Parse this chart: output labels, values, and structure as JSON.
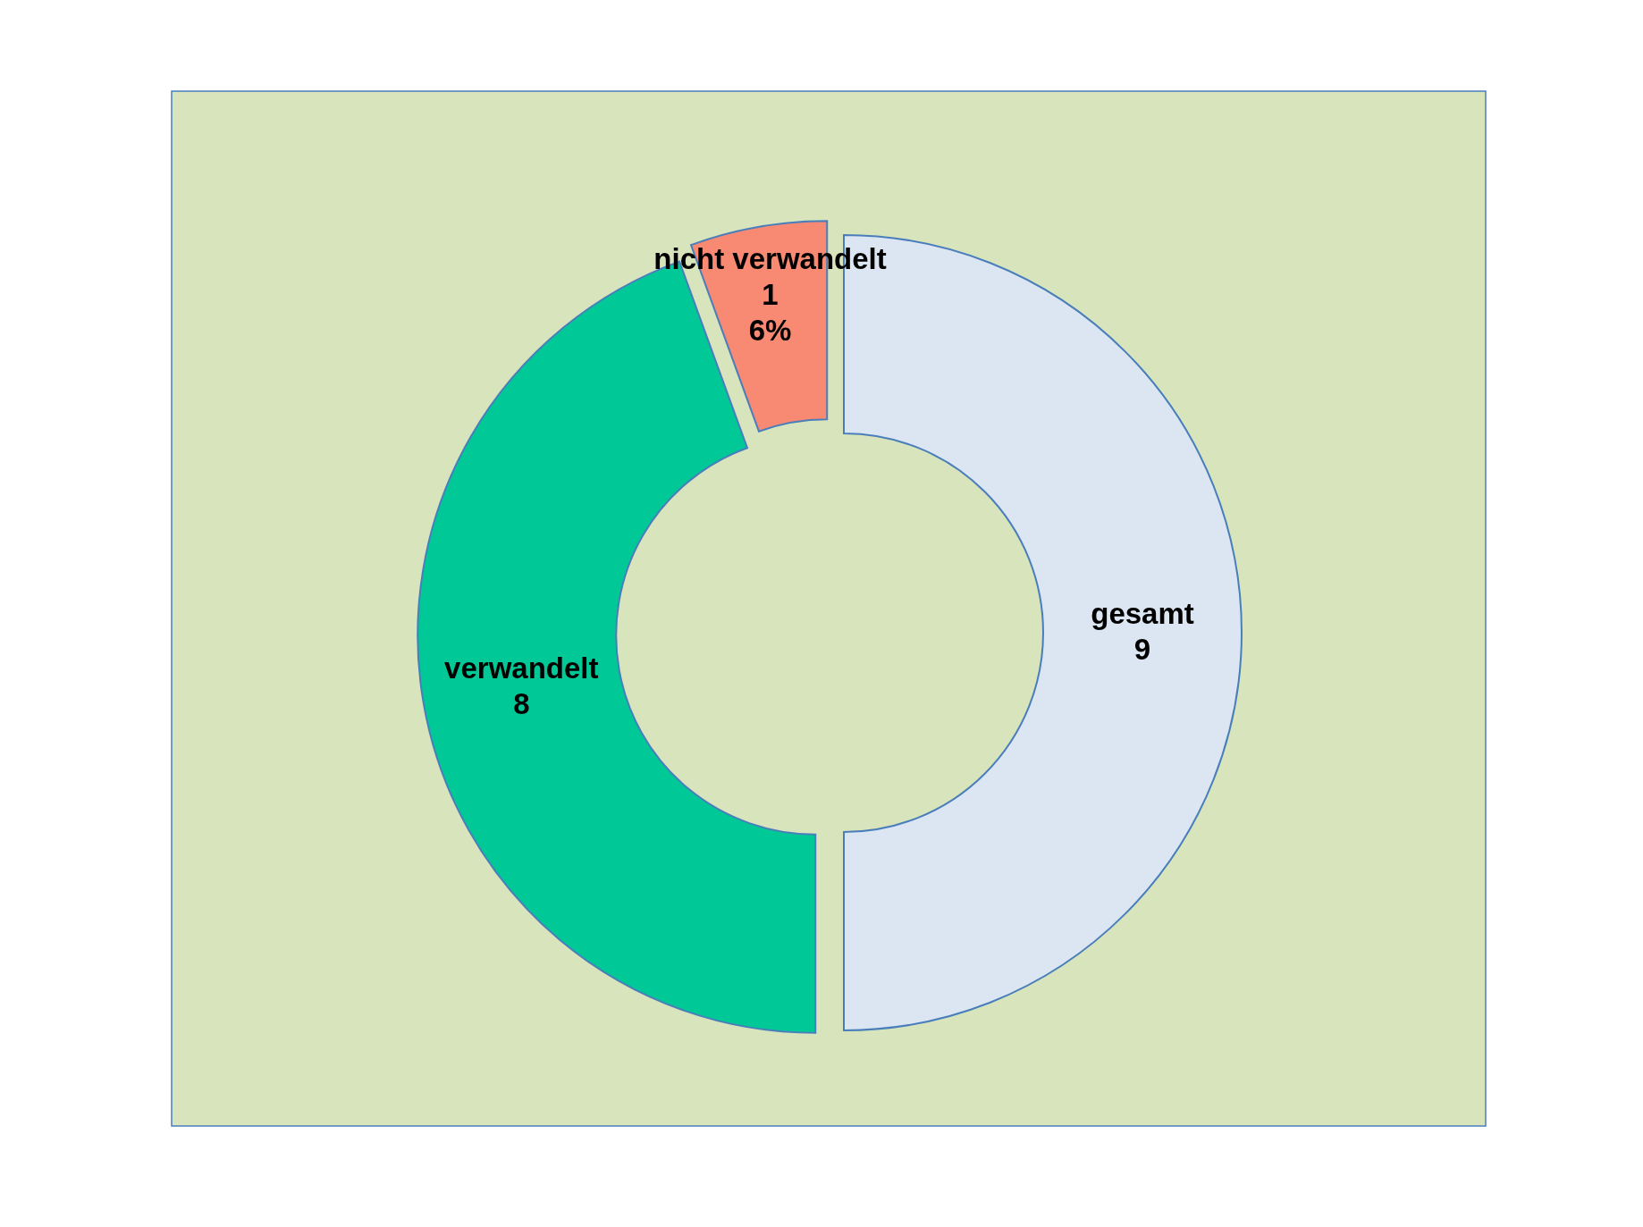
{
  "chart_data": {
    "type": "donut",
    "categories": [
      "gesamt",
      "verwandelt",
      "nicht verwandelt"
    ],
    "values": [
      9,
      8,
      1
    ],
    "colors": [
      "#dce6f2",
      "#00c896",
      "#f88a74"
    ],
    "value_labels": [
      "9",
      "8",
      "1\n6%"
    ]
  }
}
